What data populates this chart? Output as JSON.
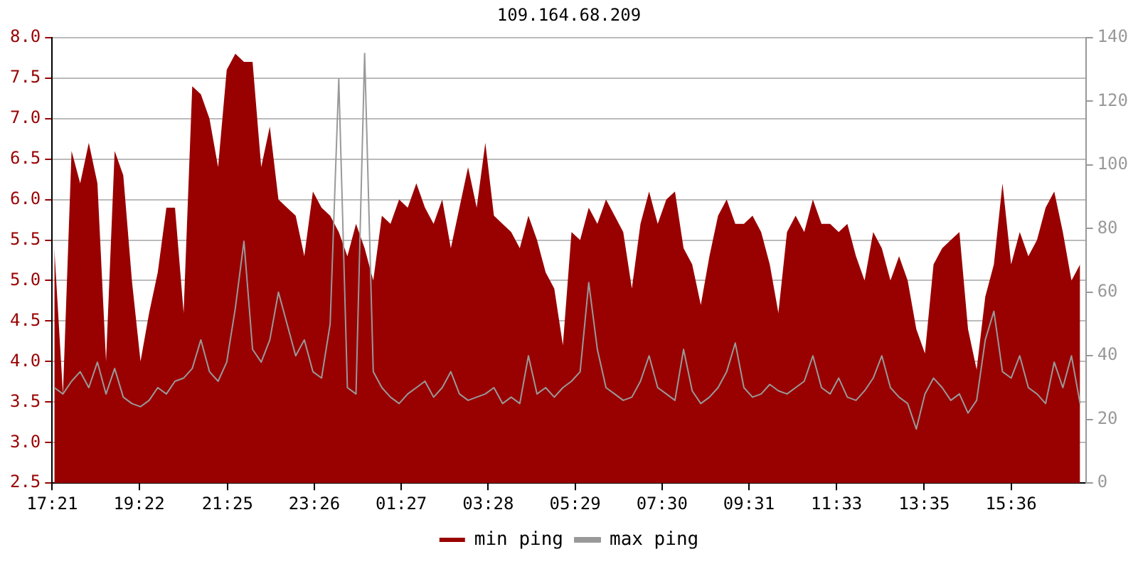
{
  "chart_data": {
    "type": "area",
    "title": "109.164.68.209",
    "x": [
      "--01-01T17:24",
      "--01-01T17:36",
      "--01-01T17:48",
      "--01-01T18:00",
      "--01-01T18:12",
      "--01-01T18:24",
      "--01-01T18:36",
      "--01-01T18:48",
      "--01-01T19:00",
      "--01-01T19:12",
      "--01-01T19:24",
      "--01-01T19:36",
      "--01-01T19:48",
      "--01-01T20:00",
      "--01-01T20:12",
      "--01-01T20:24",
      "--01-01T20:36",
      "--01-01T20:48",
      "--01-01T21:00",
      "--01-01T21:12",
      "--01-01T21:24",
      "--01-01T21:36",
      "--01-01T21:48",
      "--01-01T22:00",
      "--01-01T22:12",
      "--01-01T22:24",
      "--01-01T22:36",
      "--01-01T22:48",
      "--01-01T23:00",
      "--01-01T23:12",
      "--01-01T23:24",
      "--01-01T23:36",
      "--01-01T23:48",
      "--01-02T00:00",
      "--01-02T00:12",
      "--01-02T00:24",
      "--01-02T00:36",
      "--01-02T00:48",
      "--01-02T01:00",
      "--01-02T01:12",
      "--01-02T01:24",
      "--01-02T01:36",
      "--01-02T01:48",
      "--01-02T02:00",
      "--01-02T02:12",
      "--01-02T02:24",
      "--01-02T02:36",
      "--01-02T02:48",
      "--01-02T03:00",
      "--01-02T03:12",
      "--01-02T03:24",
      "--01-02T03:36",
      "--01-02T03:48",
      "--01-02T04:00",
      "--01-02T04:12",
      "--01-02T04:24",
      "--01-02T04:36",
      "--01-02T04:48",
      "--01-02T05:00",
      "--01-02T05:12",
      "--01-02T05:24",
      "--01-02T05:36",
      "--01-02T05:48",
      "--01-02T06:00",
      "--01-02T06:12",
      "--01-02T06:24",
      "--01-02T06:36",
      "--01-02T06:48",
      "--01-02T07:00",
      "--01-02T07:12",
      "--01-02T07:24",
      "--01-02T07:36",
      "--01-02T07:48",
      "--01-02T08:00",
      "--01-02T08:12",
      "--01-02T08:24",
      "--01-02T08:36",
      "--01-02T08:48",
      "--01-02T09:00",
      "--01-02T09:12",
      "--01-02T09:24",
      "--01-02T09:36",
      "--01-02T09:48",
      "--01-02T10:00",
      "--01-02T10:12",
      "--01-02T10:24",
      "--01-02T10:36",
      "--01-02T10:48",
      "--01-02T11:00",
      "--01-02T11:12",
      "--01-02T11:24",
      "--01-02T11:36",
      "--01-02T11:48",
      "--01-02T12:00",
      "--01-02T12:12",
      "--01-02T12:24",
      "--01-02T12:36",
      "--01-02T12:48",
      "--01-02T13:00",
      "--01-02T13:12",
      "--01-02T13:24",
      "--01-02T13:36",
      "--01-02T13:48",
      "--01-02T14:00",
      "--01-02T14:12",
      "--01-02T14:24",
      "--01-02T14:36",
      "--01-02T14:48",
      "--01-02T15:00",
      "--01-02T15:12",
      "--01-02T15:24",
      "--01-02T15:36",
      "--01-02T15:48",
      "--01-02T16:00",
      "--01-02T16:12",
      "--01-02T16:24",
      "--01-02T16:36",
      "--01-02T16:48",
      "--01-02T17:00",
      "--01-02T17:12"
    ],
    "series": [
      {
        "name": "min ping",
        "color": "#990000",
        "values": [
          5.4,
          3.6,
          6.6,
          6.2,
          6.7,
          6.2,
          4.0,
          6.6,
          6.3,
          5.0,
          4.0,
          4.6,
          5.1,
          5.9,
          5.9,
          4.6,
          7.4,
          7.3,
          7.0,
          6.4,
          7.6,
          7.8,
          7.7,
          7.7,
          6.4,
          6.9,
          6.0,
          5.9,
          5.8,
          5.3,
          6.1,
          5.9,
          5.8,
          5.6,
          5.3,
          5.7,
          5.4,
          5.0,
          5.8,
          5.7,
          6.0,
          5.9,
          6.2,
          5.9,
          5.7,
          6.0,
          5.4,
          5.9,
          6.4,
          5.9,
          6.7,
          5.8,
          5.7,
          5.6,
          5.4,
          5.8,
          5.5,
          5.1,
          4.9,
          4.2,
          5.6,
          5.5,
          5.9,
          5.7,
          6.0,
          5.8,
          5.6,
          4.9,
          5.7,
          6.1,
          5.7,
          6.0,
          6.1,
          5.4,
          5.2,
          4.7,
          5.3,
          5.8,
          6.0,
          5.7,
          5.7,
          5.8,
          5.6,
          5.2,
          4.6,
          5.6,
          5.8,
          5.6,
          6.0,
          5.7,
          5.7,
          5.6,
          5.7,
          5.3,
          5.0,
          5.6,
          5.4,
          5.0,
          5.3,
          5.0,
          4.4,
          4.1,
          5.2,
          5.4,
          5.5,
          5.6,
          4.4,
          3.9,
          4.8,
          5.2,
          6.2,
          5.2,
          5.6,
          5.3,
          5.5,
          5.9,
          6.1,
          5.6,
          5.0,
          5.2
        ]
      },
      {
        "name": "max ping",
        "type": "line",
        "axis": "y2",
        "color": "#999999",
        "values": [
          30,
          28,
          32,
          35,
          30,
          38,
          28,
          36,
          27,
          25,
          24,
          26,
          30,
          28,
          32,
          33,
          36,
          45,
          35,
          32,
          38,
          55,
          76,
          42,
          38,
          45,
          60,
          50,
          40,
          45,
          35,
          33,
          50,
          127,
          30,
          28,
          135,
          35,
          30,
          27,
          25,
          28,
          30,
          32,
          27,
          30,
          35,
          28,
          26,
          27,
          28,
          30,
          25,
          27,
          25,
          40,
          28,
          30,
          27,
          30,
          32,
          35,
          63,
          42,
          30,
          28,
          26,
          27,
          32,
          40,
          30,
          28,
          26,
          42,
          29,
          25,
          27,
          30,
          35,
          44,
          30,
          27,
          28,
          31,
          29,
          28,
          30,
          32,
          40,
          30,
          28,
          33,
          27,
          26,
          29,
          33,
          40,
          30,
          27,
          25,
          17,
          28,
          33,
          30,
          26,
          28,
          22,
          26,
          45,
          54,
          35,
          33,
          40,
          30,
          28,
          25,
          38,
          30,
          40,
          25
        ]
      }
    ],
    "xlim": [
      "--01-01T17:21",
      "--01-02T17:20"
    ],
    "xticks": [
      {
        "value": "--01-01T17:21",
        "label": "17:21"
      },
      {
        "value": "--01-01T19:22",
        "label": "19:22"
      },
      {
        "value": "--01-01T21:25",
        "label": "21:25"
      },
      {
        "value": "--01-01T23:26",
        "label": "23:26"
      },
      {
        "value": "--01-02T01:27",
        "label": "01:27"
      },
      {
        "value": "--01-02T03:28",
        "label": "03:28"
      },
      {
        "value": "--01-02T05:29",
        "label": "05:29"
      },
      {
        "value": "--01-02T07:30",
        "label": "07:30"
      },
      {
        "value": "--01-02T09:31",
        "label": "09:31"
      },
      {
        "value": "--01-02T11:33",
        "label": "11:33"
      },
      {
        "value": "--01-02T13:35",
        "label": "13:35"
      },
      {
        "value": "--01-02T15:36",
        "label": "15:36"
      }
    ],
    "ylim": [
      2.5,
      8.0
    ],
    "yticks": [
      {
        "value": 2.5,
        "label": "2.5"
      },
      {
        "value": 3,
        "label": "3.0"
      },
      {
        "value": 3.5,
        "label": "3.5"
      },
      {
        "value": 4,
        "label": "4.0"
      },
      {
        "value": 4.5,
        "label": "4.5"
      },
      {
        "value": 5,
        "label": "5.0"
      },
      {
        "value": 5.5,
        "label": "5.5"
      },
      {
        "value": 6,
        "label": "6.0"
      },
      {
        "value": 6.5,
        "label": "6.5"
      },
      {
        "value": 7,
        "label": "7.0"
      },
      {
        "value": 7.5,
        "label": "7.5"
      },
      {
        "value": 8,
        "label": "8.0"
      }
    ],
    "y2lim": [
      0,
      140
    ],
    "y2ticks": [
      0,
      20,
      40,
      60,
      80,
      100,
      120,
      140
    ],
    "grid": "y",
    "legend": "bottom",
    "marker": "none",
    "line_style": "solid"
  }
}
